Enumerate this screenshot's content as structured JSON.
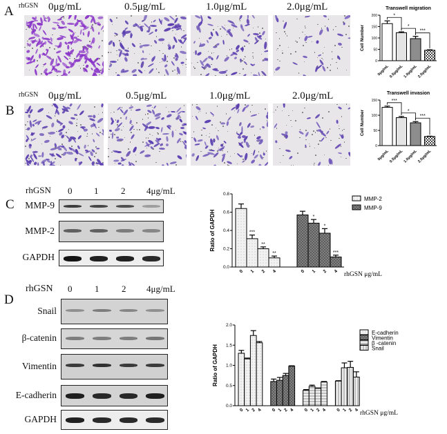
{
  "panels": {
    "a": "A",
    "b": "B",
    "c": "C",
    "d": "D"
  },
  "rhgsn": "rhGSN",
  "micro_conc": [
    "0μg/mL",
    "0.5μg/mL",
    "1.0μg/mL",
    "2.0μg/mL"
  ],
  "blot_c": {
    "lanes": [
      "0",
      "1",
      "2",
      "4μg/mL"
    ],
    "rows": [
      "MMP-9",
      "MMP-2",
      "GAPDH"
    ]
  },
  "blot_d": {
    "lanes": [
      "0",
      "1",
      "2",
      "4μg/mL"
    ],
    "rows": [
      "Snail",
      "β-catenin",
      "Vimentin",
      "E-cadherin",
      "GAPDH"
    ]
  },
  "colors": {
    "stain": "#5b3fb0",
    "stain_a": "#8a35c8",
    "bar_white": "#ffffff",
    "bar_light": "#e6e6e6",
    "bar_mid": "#9a9a9a",
    "bar_dark": "#6e6e6e"
  },
  "chart_data": [
    {
      "type": "bar",
      "title": "Transwell migration",
      "ylabel": "Cell Number",
      "xlabel": "",
      "categories": [
        "0μg/mL",
        "0.5μg/mL",
        "1.0μg/mL",
        "2.0μg/mL"
      ],
      "values": [
        163,
        123,
        97,
        46
      ],
      "errors": [
        12,
        4,
        10,
        2
      ],
      "ylim": [
        0,
        200
      ],
      "yticks": [
        "0",
        "50",
        "100",
        "150",
        "200"
      ],
      "significance": [
        {
          "from": 0,
          "to": 1,
          "label": "*"
        },
        {
          "from": 1,
          "to": 2,
          "label": "*"
        },
        {
          "from": 2,
          "to": 3,
          "label": "***"
        }
      ]
    },
    {
      "type": "bar",
      "title": "Transwell invasion",
      "ylabel": "Cell Number",
      "xlabel": "",
      "categories": [
        "0μg/mL",
        "0.5μg/mL",
        "1.0μg/mL",
        "2.0μg/mL"
      ],
      "values": [
        126,
        92,
        75,
        30
      ],
      "errors": [
        4,
        4,
        4,
        1
      ],
      "ylim": [
        0,
        150
      ],
      "yticks": [
        "0",
        "50",
        "100",
        "150"
      ],
      "significance": [
        {
          "from": 0,
          "to": 1,
          "label": "***"
        },
        {
          "from": 1,
          "to": 2,
          "label": "*"
        },
        {
          "from": 2,
          "to": 3,
          "label": "***"
        }
      ]
    },
    {
      "type": "bar",
      "title": "",
      "ylabel": "Ratio of GAPDH",
      "xlabel": "rhGSN  μg/mL",
      "categories": [
        "0",
        "1",
        "2",
        "4"
      ],
      "ylim": [
        0,
        0.8
      ],
      "yticks": [
        "0.0",
        "0.2",
        "0.4",
        "0.6",
        "0.8"
      ],
      "legend": "right",
      "series": [
        {
          "name": "MMP-2",
          "values": [
            0.64,
            0.31,
            0.2,
            0.1
          ],
          "errors": [
            0.05,
            0.04,
            0.02,
            0.02
          ],
          "stars": [
            "",
            "***",
            "**",
            "**"
          ]
        },
        {
          "name": "MMP-9",
          "values": [
            0.57,
            0.48,
            0.37,
            0.11
          ],
          "errors": [
            0.04,
            0.04,
            0.05,
            0.02
          ],
          "stars": [
            "",
            "*",
            "*",
            "***"
          ]
        }
      ]
    },
    {
      "type": "bar",
      "title": "",
      "ylabel": "Ratio of GAPDH",
      "xlabel": "rhGSN  μg/mL",
      "categories": [
        "0",
        "1",
        "2",
        "4"
      ],
      "ylim": [
        0,
        2.0
      ],
      "yticks": [
        "0.0",
        "0.5",
        "1.0",
        "1.5",
        "2.0"
      ],
      "legend": "right",
      "series": [
        {
          "name": "E-cadherin",
          "values": [
            1.3,
            1.16,
            1.74,
            1.56
          ],
          "errors": [
            0.07,
            0.02,
            0.12,
            0.03
          ]
        },
        {
          "name": "Vimentin",
          "values": [
            0.6,
            0.63,
            0.75,
            0.98
          ],
          "errors": [
            0.06,
            0.07,
            0.05,
            0.01
          ]
        },
        {
          "name": "β -catenin",
          "values": [
            0.38,
            0.48,
            0.43,
            0.59
          ],
          "errors": [
            0.02,
            0.03,
            0.01,
            0.01
          ]
        },
        {
          "name": "Snail",
          "values": [
            0.61,
            0.94,
            0.95,
            0.71
          ],
          "errors": [
            0.01,
            0.12,
            0.15,
            0.13
          ]
        }
      ]
    }
  ]
}
